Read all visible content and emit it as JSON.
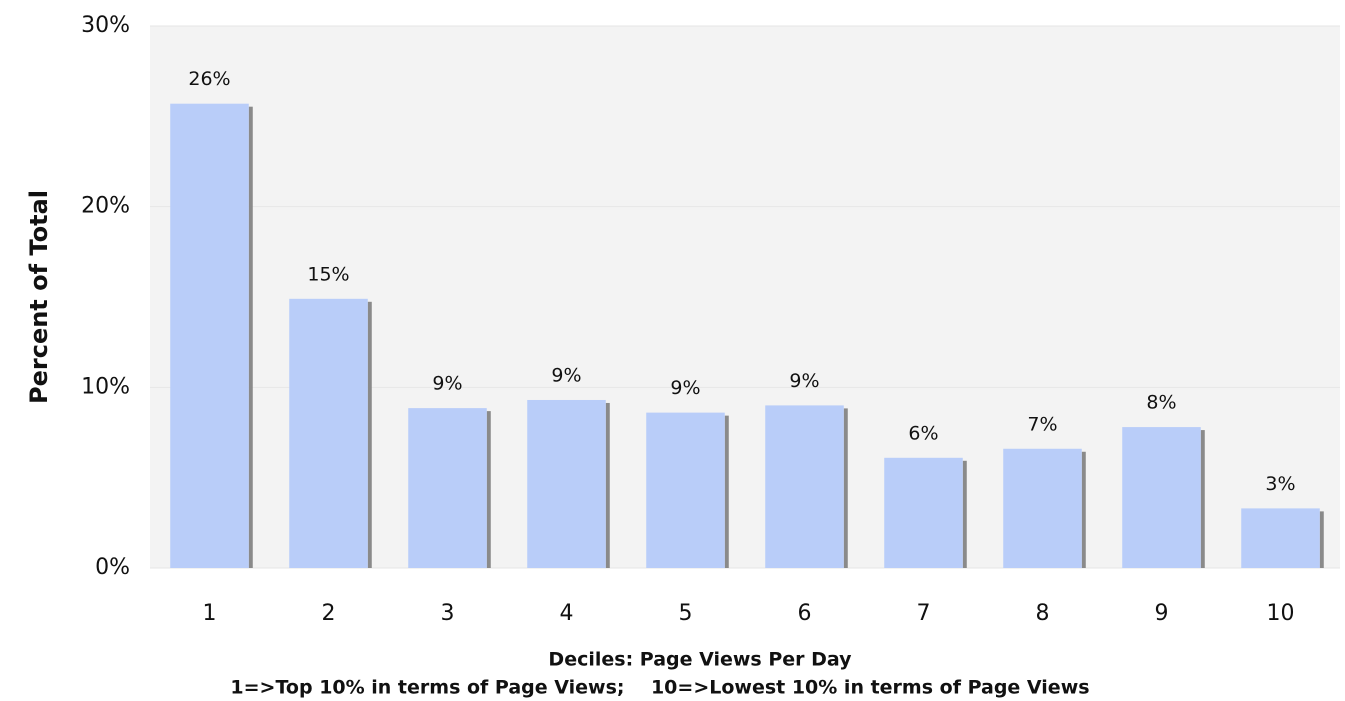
{
  "chart_data": {
    "type": "bar",
    "categories": [
      "1",
      "2",
      "3",
      "4",
      "5",
      "6",
      "7",
      "8",
      "9",
      "10"
    ],
    "values": [
      25.7,
      14.9,
      8.85,
      9.3,
      8.6,
      9.0,
      6.1,
      6.6,
      7.8,
      3.3
    ],
    "value_labels": [
      "26%",
      "15%",
      "9%",
      "9%",
      "9%",
      "9%",
      "6%",
      "7%",
      "8%",
      "3%"
    ],
    "color": "#b9cdf9",
    "ylim": [
      0,
      30
    ],
    "yticks": [
      {
        "value": 0,
        "label": "0%"
      },
      {
        "value": 10,
        "label": "10%"
      },
      {
        "value": 20,
        "label": "20%"
      },
      {
        "value": 30,
        "label": "30%"
      }
    ],
    "grid": true,
    "y_label": "Percent of Total",
    "x_label": "Deciles: Page Views Per Day",
    "x_sublabel": "1=>Top 10% in terms of Page Views;    10=>Lowest 10% in terms of Page Views"
  }
}
